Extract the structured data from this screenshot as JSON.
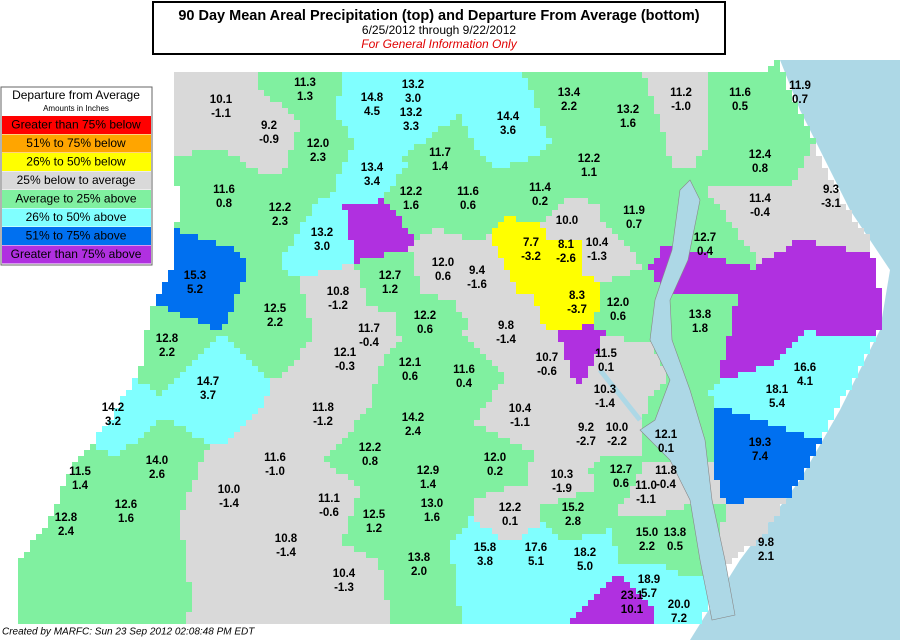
{
  "header": {
    "title": "90 Day Mean Areal Precipitation (top) and Departure From Average (bottom)",
    "subtitle": "6/25/2012 through  9/22/2012",
    "note": "For General Information Only"
  },
  "legend": {
    "title": "Departure from Average",
    "subtitle": "Amounts in Inches",
    "items": [
      {
        "label": "Greater than 75% below",
        "color": "#ff0000"
      },
      {
        "label": "51% to 75% below",
        "color": "#ffa500"
      },
      {
        "label": "26% to 50% below",
        "color": "#ffff00"
      },
      {
        "label": "25% below to average",
        "color": "#d9d9d9"
      },
      {
        "label": "Average to 25% above",
        "color": "#80f0a0"
      },
      {
        "label": "26% to 50% above",
        "color": "#80ffff"
      },
      {
        "label": "51% to 75% above",
        "color": "#0070f0"
      },
      {
        "label": "Greater than 75% above",
        "color": "#b030e0"
      }
    ]
  },
  "regions": [
    {
      "precip": "10.1",
      "departure": "-1.1",
      "color": "#d9d9d9"
    },
    {
      "precip": "11.3",
      "departure": "1.3",
      "color": "#80f0a0"
    },
    {
      "precip": "9.2",
      "departure": "-0.9",
      "color": "#d9d9d9"
    },
    {
      "precip": "14.8",
      "departure": "4.5",
      "color": "#80ffff"
    },
    {
      "precip": "13.2",
      "departure": "3.0",
      "color": "#80ffff"
    },
    {
      "precip": "13.2",
      "departure": "3.3",
      "color": "#80ffff"
    },
    {
      "precip": "14.4",
      "departure": "3.6",
      "color": "#80ffff"
    },
    {
      "precip": "13.4",
      "departure": "2.2",
      "color": "#80f0a0"
    },
    {
      "precip": "13.2",
      "departure": "1.6",
      "color": "#80f0a0"
    },
    {
      "precip": "11.2",
      "departure": "-1.0",
      "color": "#d9d9d9"
    },
    {
      "precip": "11.6",
      "departure": "0.5",
      "color": "#80f0a0"
    },
    {
      "precip": "11.9",
      "departure": "0.7",
      "color": "#80f0a0"
    },
    {
      "precip": "12.0",
      "departure": "2.3",
      "color": "#80f0a0"
    },
    {
      "precip": "13.4",
      "departure": "3.4",
      "color": "#80ffff"
    },
    {
      "precip": "11.7",
      "departure": "1.4",
      "color": "#80f0a0"
    },
    {
      "precip": "12.2",
      "departure": "1.1",
      "color": "#80f0a0"
    },
    {
      "precip": "12.4",
      "departure": "0.8",
      "color": "#80f0a0"
    },
    {
      "precip": "11.6",
      "departure": "0.8",
      "color": "#80f0a0"
    },
    {
      "precip": "12.2",
      "departure": "2.3",
      "color": "#80f0a0"
    },
    {
      "precip": "12.2",
      "departure": "1.6",
      "color": "#80f0a0"
    },
    {
      "precip": "11.6",
      "departure": "0.6",
      "color": "#80f0a0"
    },
    {
      "precip": "11.4",
      "departure": "0.2",
      "color": "#80f0a0"
    },
    {
      "precip": "11.9",
      "departure": "0.7",
      "color": "#80f0a0"
    },
    {
      "precip": "11.4",
      "departure": "-0.4",
      "color": "#d9d9d9"
    },
    {
      "precip": "9.3",
      "departure": "-3.1",
      "color": "#d9d9d9"
    },
    {
      "precip": "13.2",
      "departure": "3.0",
      "color": "#80ffff"
    },
    {
      "precip": "7.7",
      "departure": "-3.2",
      "color": "#ffff00"
    },
    {
      "precip": "8.1",
      "departure": "-2.6",
      "color": "#ffff00"
    },
    {
      "precip": "10.0",
      "color": "#d9d9d9"
    },
    {
      "precip": "10.4",
      "departure": "-1.3",
      "color": "#d9d9d9"
    },
    {
      "precip": "12.7",
      "departure": "0.4",
      "color": "#80f0a0"
    },
    {
      "precip": "9.4",
      "departure": "-1.6",
      "color": "#d9d9d9"
    },
    {
      "precip": "12.7",
      "departure": "1.2",
      "color": "#80f0a0"
    },
    {
      "precip": "12.0",
      "departure": "0.6",
      "color": "#d9d9d9"
    },
    {
      "precip": "10.8",
      "departure": "-1.2",
      "color": "#d9d9d9"
    },
    {
      "precip": "15.3",
      "departure": "5.2",
      "color": "#0070f0"
    },
    {
      "precip": "12.5",
      "departure": "2.2",
      "color": "#80f0a0"
    },
    {
      "precip": "8.3",
      "departure": "-3.7",
      "color": "#ffff00"
    },
    {
      "precip": "12.0",
      "departure": "0.6",
      "color": "#80f0a0"
    },
    {
      "precip": "13.8",
      "departure": "1.8",
      "color": "#80f0a0"
    },
    {
      "precip": "11.7",
      "departure": "-0.4",
      "color": "#d9d9d9"
    },
    {
      "precip": "12.2",
      "departure": "0.6",
      "color": "#80f0a0"
    },
    {
      "precip": "9.8",
      "departure": "-1.4",
      "color": "#d9d9d9"
    },
    {
      "precip": "12.8",
      "departure": "2.2",
      "color": "#80f0a0"
    },
    {
      "precip": "12.1",
      "departure": "-0.3",
      "color": "#d9d9d9"
    },
    {
      "precip": "12.1",
      "departure": "0.6",
      "color": "#80f0a0"
    },
    {
      "precip": "10.7",
      "departure": "-0.6",
      "color": "#d9d9d9"
    },
    {
      "precip": "11.5",
      "departure": "0.1",
      "color": "#d9d9d9"
    },
    {
      "precip": "11.6",
      "departure": "0.4",
      "color": "#80f0a0"
    },
    {
      "precip": "16.6",
      "departure": "4.1",
      "color": "#80ffff"
    },
    {
      "precip": "14.7",
      "departure": "3.7",
      "color": "#80ffff"
    },
    {
      "precip": "18.1",
      "departure": "5.4",
      "color": "#80ffff"
    },
    {
      "precip": "11.8",
      "departure": "-1.2",
      "color": "#d9d9d9"
    },
    {
      "precip": "10.3",
      "departure": "-1.4",
      "color": "#d9d9d9"
    },
    {
      "precip": "14.2",
      "departure": "3.2",
      "color": "#80ffff"
    },
    {
      "precip": "14.2",
      "departure": "2.4",
      "color": "#80f0a0"
    },
    {
      "precip": "10.4",
      "departure": "-1.1",
      "color": "#d9d9d9"
    },
    {
      "precip": "9.2",
      "departure": "-2.7",
      "color": "#d9d9d9"
    },
    {
      "precip": "10.0",
      "departure": "-2.2",
      "color": "#d9d9d9"
    },
    {
      "precip": "12.1",
      "departure": "0.1",
      "color": "#80f0a0"
    },
    {
      "precip": "19.3",
      "departure": "7.4",
      "color": "#0070f0"
    },
    {
      "precip": "11.6",
      "departure": "-1.0",
      "color": "#d9d9d9"
    },
    {
      "precip": "12.2",
      "departure": "0.8",
      "color": "#80f0a0"
    },
    {
      "precip": "12.9",
      "departure": "1.4",
      "color": "#80f0a0"
    },
    {
      "precip": "12.0",
      "departure": "0.2",
      "color": "#80f0a0"
    },
    {
      "precip": "10.3",
      "departure": "-1.9",
      "color": "#d9d9d9"
    },
    {
      "precip": "12.7",
      "departure": "0.6",
      "color": "#80f0a0"
    },
    {
      "precip": "11.8",
      "departure": "-0.4",
      "color": "#d9d9d9"
    },
    {
      "precip": "11.5",
      "departure": "1.4",
      "color": "#80f0a0"
    },
    {
      "precip": "14.0",
      "departure": "2.6",
      "color": "#80f0a0"
    },
    {
      "precip": "10.0",
      "departure": "-1.4",
      "color": "#d9d9d9"
    },
    {
      "precip": "11.1",
      "departure": "-0.6",
      "color": "#d9d9d9"
    },
    {
      "precip": "11.0",
      "departure": "-1.1",
      "color": "#d9d9d9"
    },
    {
      "precip": "12.6",
      "departure": "1.6",
      "color": "#80f0a0"
    },
    {
      "precip": "12.5",
      "departure": "1.2",
      "color": "#80f0a0"
    },
    {
      "precip": "13.0",
      "departure": "1.6",
      "color": "#80f0a0"
    },
    {
      "precip": "12.2",
      "departure": "0.1",
      "color": "#d9d9d9"
    },
    {
      "precip": "15.2",
      "departure": "2.8",
      "color": "#80f0a0"
    },
    {
      "precip": "15.0",
      "departure": "2.2",
      "color": "#80f0a0"
    },
    {
      "precip": "13.8",
      "departure": "0.5",
      "color": "#80f0a0"
    },
    {
      "precip": "9.8",
      "departure": "2.1",
      "color": "#d9d9d9"
    },
    {
      "precip": "12.8",
      "departure": "2.4",
      "color": "#80f0a0"
    },
    {
      "precip": "10.8",
      "departure": "-1.4",
      "color": "#d9d9d9"
    },
    {
      "precip": "15.8",
      "departure": "3.8",
      "color": "#80ffff"
    },
    {
      "precip": "17.6",
      "departure": "5.1",
      "color": "#80ffff"
    },
    {
      "precip": "18.2",
      "departure": "5.0",
      "color": "#80ffff"
    },
    {
      "precip": "13.8",
      "departure": "2.0",
      "color": "#80f0a0"
    },
    {
      "precip": "10.4",
      "departure": "-1.3",
      "color": "#d9d9d9"
    },
    {
      "precip": "18.9",
      "departure": "5.7",
      "color": "#80ffff"
    },
    {
      "precip": "23.1",
      "departure": "10.1",
      "color": "#b030e0"
    },
    {
      "precip": "20.0",
      "departure": "7.2",
      "color": "#80ffff"
    }
  ],
  "footer": "Created by MARFC: Sun 23 Sep 2012 02:08:48 PM EDT"
}
